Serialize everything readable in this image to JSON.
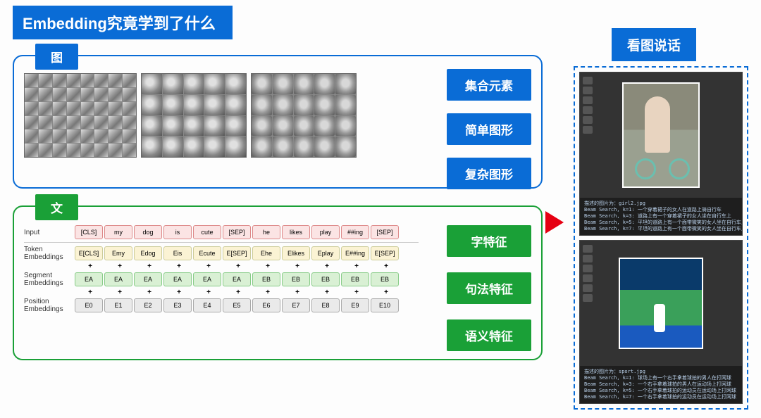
{
  "title": "Embedding究竟学到了什么",
  "right_title": "看图说话",
  "colors": {
    "blue": "#0a6cd6",
    "green": "#1aa037",
    "red_arrow": "#e60012",
    "dark_bg": "#2a2a2a"
  },
  "image_panel": {
    "label": "图",
    "buttons": [
      "集合元素",
      "简单图形",
      "复杂图形"
    ],
    "feature_grids": [
      {
        "type": "edges",
        "cols": 8,
        "rows": 6
      },
      {
        "type": "parts",
        "cols": 5,
        "rows": 4
      },
      {
        "type": "faces",
        "cols": 5,
        "rows": 4
      }
    ]
  },
  "text_panel": {
    "label": "文",
    "buttons": [
      "字特征",
      "句法特征",
      "语义特征"
    ],
    "row_labels": [
      "Input",
      "Token\nEmbeddings",
      "Segment\nEmbeddings",
      "Position\nEmbeddings"
    ],
    "input_tokens": [
      "[CLS]",
      "my",
      "dog",
      "is",
      "cute",
      "[SEP]",
      "he",
      "likes",
      "play",
      "##ing",
      "[SEP]"
    ],
    "token_emb": [
      "E[CLS]",
      "Emy",
      "Edog",
      "Eis",
      "Ecute",
      "E[SEP]",
      "Ehe",
      "Elikes",
      "Eplay",
      "E##ing",
      "E[SEP]"
    ],
    "segment_emb": [
      "EA",
      "EA",
      "EA",
      "EA",
      "EA",
      "EA",
      "EB",
      "EB",
      "EB",
      "EB",
      "EB"
    ],
    "position_emb": [
      "E0",
      "E1",
      "E2",
      "E3",
      "E4",
      "E5",
      "E6",
      "E7",
      "E8",
      "E9",
      "E10"
    ]
  },
  "demos": [
    {
      "img_label": "girl2.jpg",
      "lines": [
        "描述的图片为：girl2.jpg",
        "Beam Search, k=1: 一个穿着裙子的女人在道路上骑自行车",
        "Beam Search, k=3: 道路上有一个穿着裙子的女人坐在自行车上",
        "Beam Search, k=5: 平坦的道路上有一个面带微笑的女人坐在自行车上",
        "Beam Search, k=7: 平坦的道路上有一个面带微笑的女人坐在自行车上"
      ]
    },
    {
      "img_label": "sport.jpg",
      "lines": [
        "描述的图片为：sport.jpg",
        "Beam Search, k=1: 球场上有一个右手拿着球拍的男人在打网球",
        "Beam Search, k=3: 一个右手拿着球拍的男人在运动场上打网球",
        "Beam Search, k=5: 一个右手拿着球拍的运动员在运动场上打网球",
        "Beam Search, k=7: 一个右手拿着球拍的运动员在运动场上打网球"
      ]
    }
  ]
}
